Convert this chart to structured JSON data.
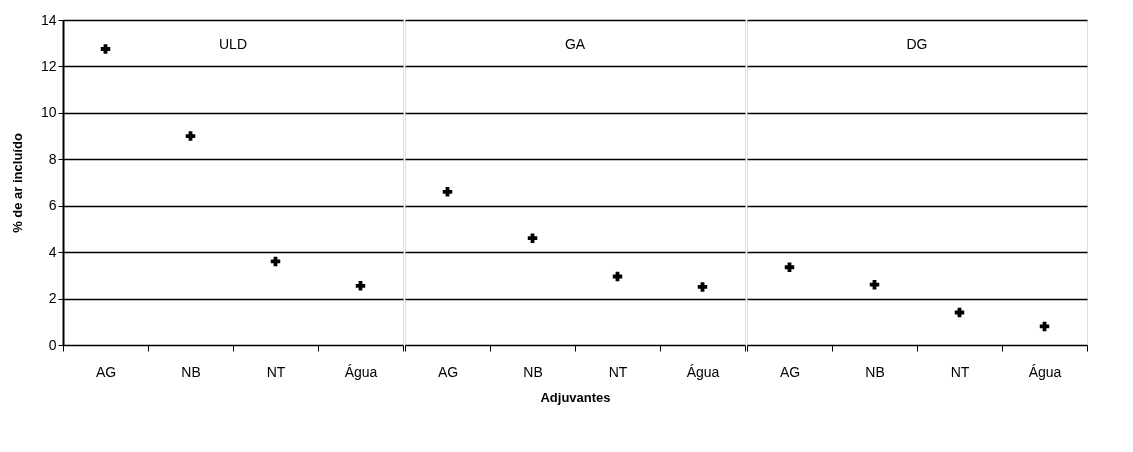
{
  "chart_data": [
    {
      "type": "scatter",
      "title": "ULD",
      "ylabel": "% de ar incluído",
      "categories": [
        "AG",
        "NB",
        "NT",
        "Água"
      ],
      "series": [
        {
          "color": "#000000",
          "values": [
            12.75,
            9.0,
            3.6,
            2.55
          ]
        }
      ],
      "ylim": [
        0,
        14
      ],
      "yticks": [
        0,
        2,
        4,
        6,
        8,
        10,
        12,
        14
      ],
      "grid": "y",
      "marker": "cross",
      "legend": false
    },
    {
      "type": "scatter",
      "title": "GA",
      "xlabel": "Adjuvantes",
      "categories": [
        "AG",
        "NB",
        "NT",
        "Água"
      ],
      "series": [
        {
          "color": "#000000",
          "values": [
            6.6,
            4.6,
            2.95,
            2.5
          ]
        }
      ],
      "ylim": [
        0,
        14
      ],
      "yticks": [
        0,
        2,
        4,
        6,
        8,
        10,
        12,
        14
      ],
      "grid": "y",
      "marker": "cross",
      "legend": false,
      "tick_labels": "x"
    },
    {
      "type": "scatter",
      "title": "DG",
      "categories": [
        "AG",
        "NB",
        "NT",
        "Água"
      ],
      "series": [
        {
          "color": "#000000",
          "values": [
            3.35,
            2.6,
            1.4,
            0.8
          ]
        }
      ],
      "ylim": [
        0,
        14
      ],
      "yticks": [
        0,
        2,
        4,
        6,
        8,
        10,
        12,
        14
      ],
      "grid": "y",
      "marker": "cross",
      "legend": false,
      "tick_labels": "x"
    }
  ]
}
